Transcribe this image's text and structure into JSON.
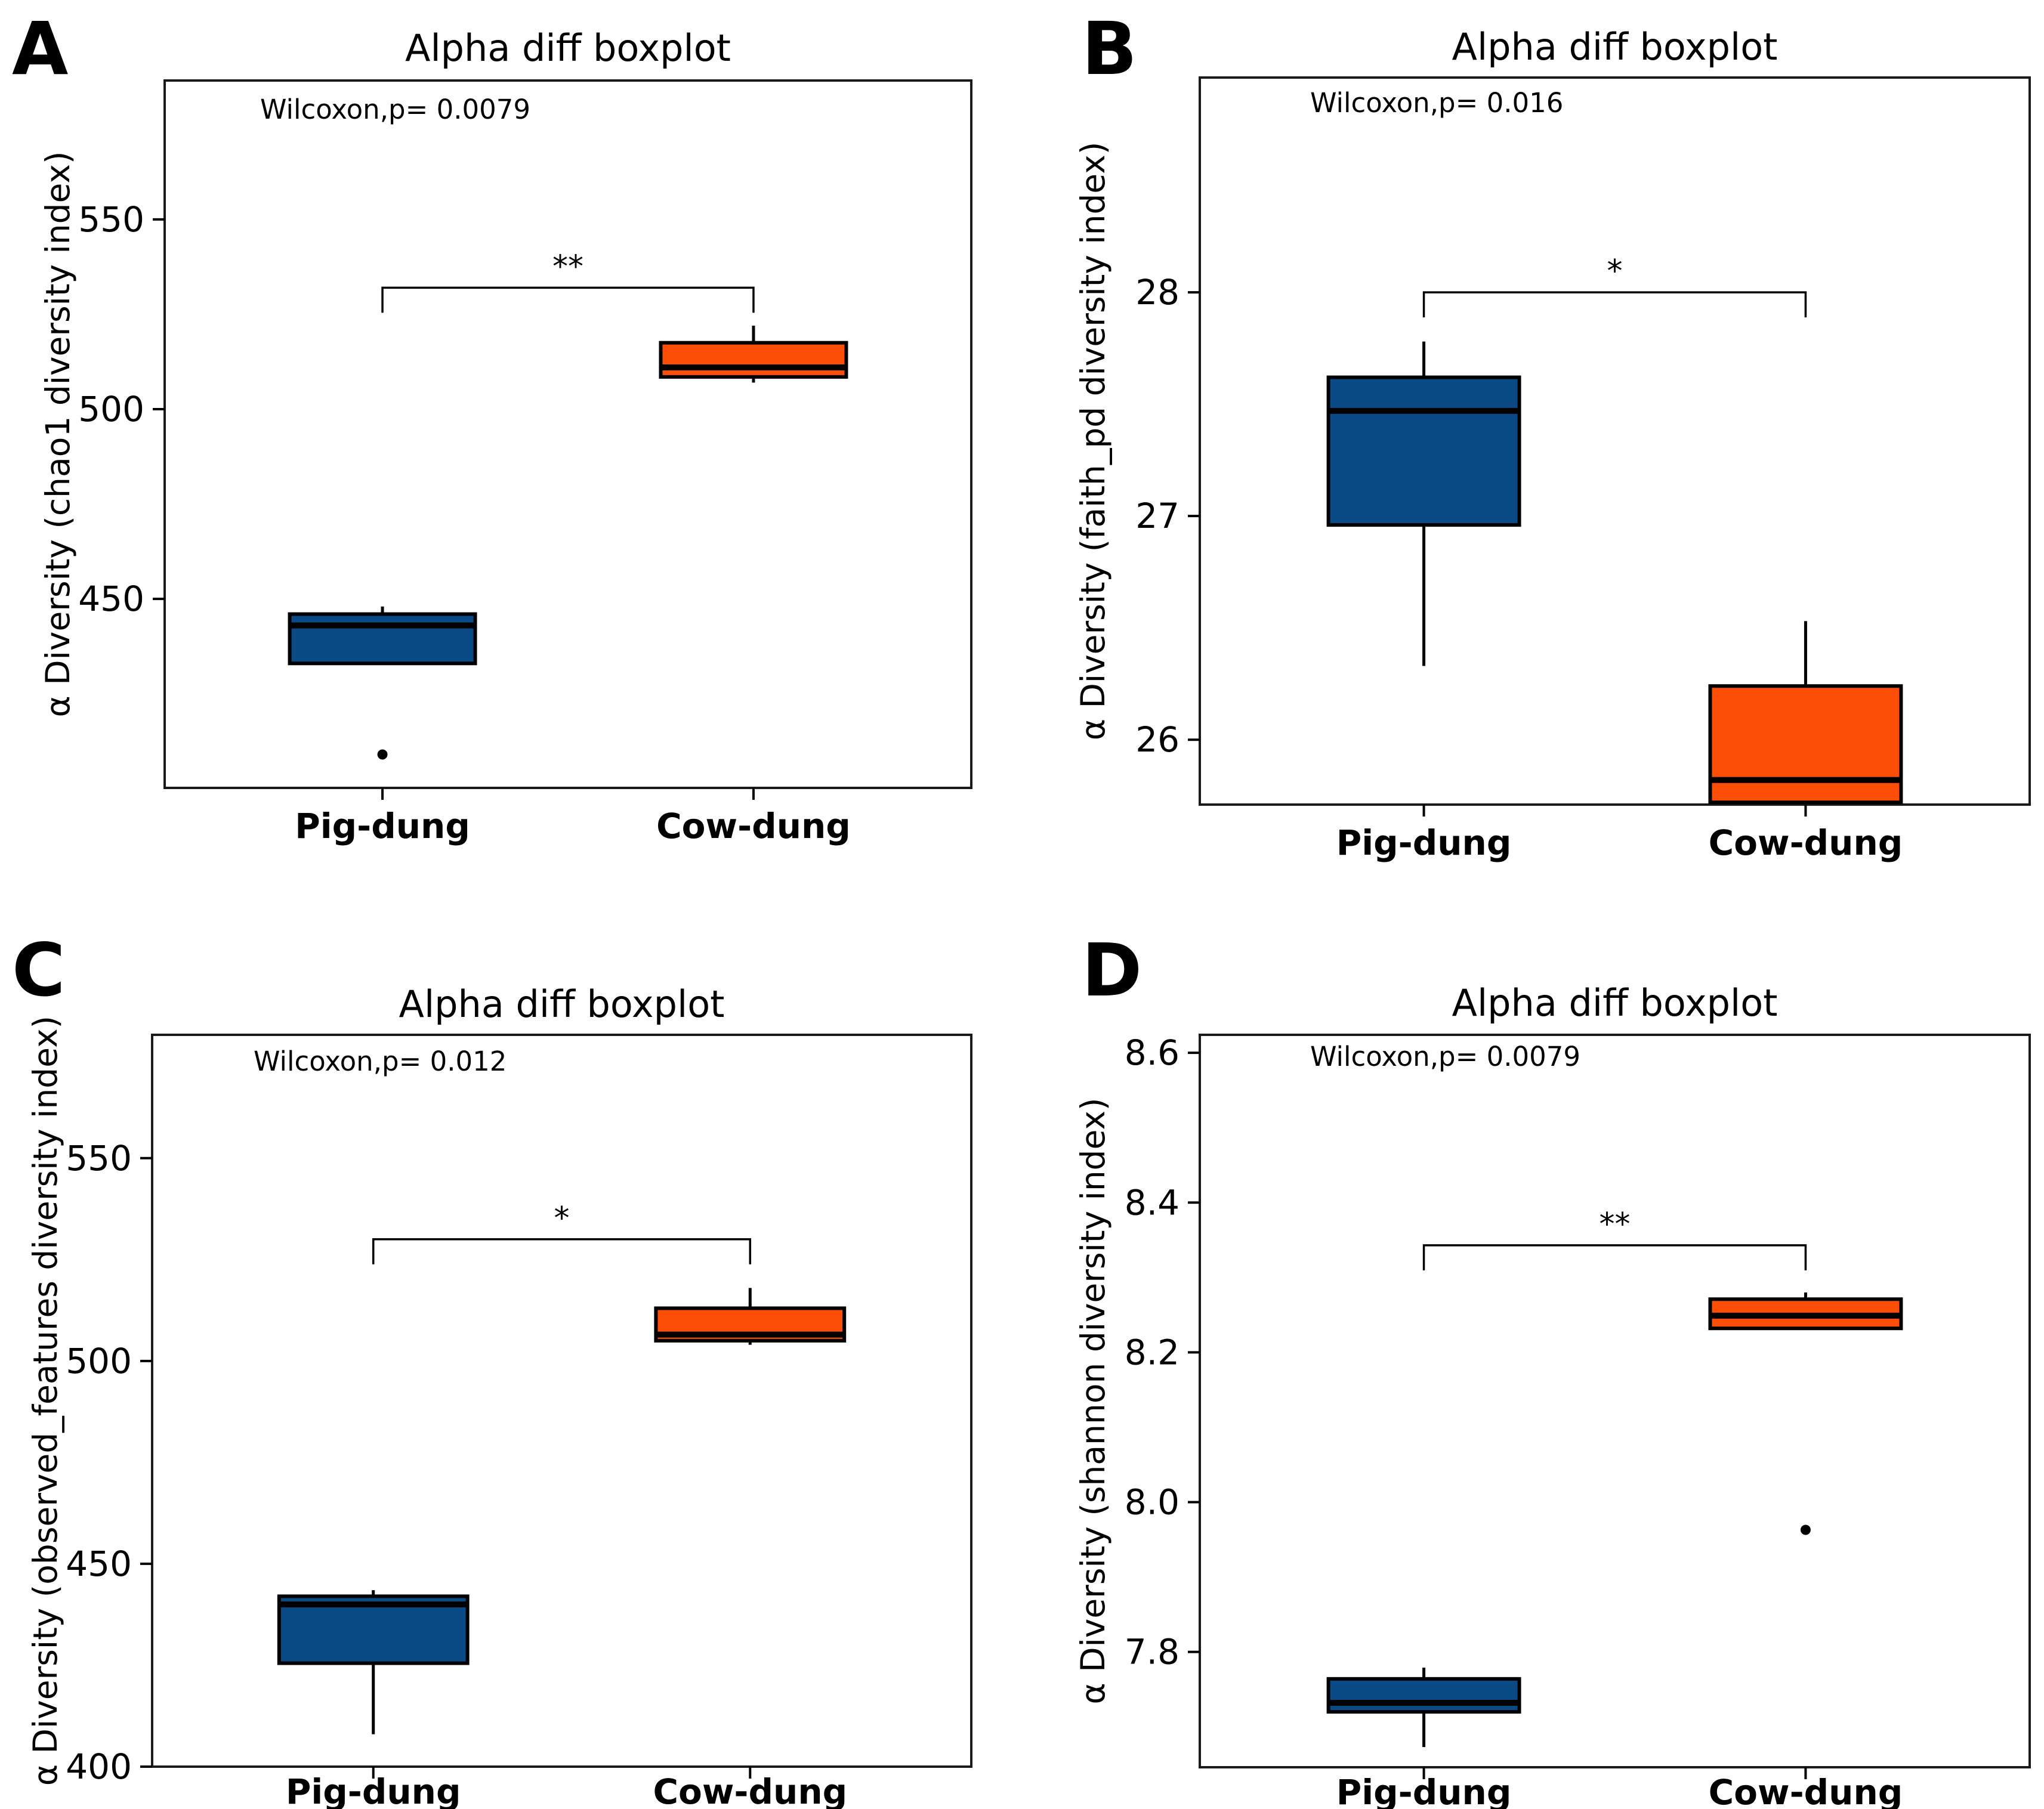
{
  "figure": {
    "background": "#ffffff",
    "accent_blue": "#0A4B87",
    "accent_orange": "#FC4E07"
  },
  "chart_data": [
    {
      "type": "boxplot",
      "panel_label": "A",
      "title": "Alpha diff boxplot",
      "annotation": "Wilcoxon,p= 0.0079",
      "ylabel": "α Diversity (chao1 diversity index)",
      "xlabel": "",
      "ylim": [
        400.2,
        586.6
      ],
      "ytick_values": [
        450,
        500,
        550
      ],
      "ytick_labels": [
        "450",
        "500",
        "550"
      ],
      "grid": false,
      "legend": "none",
      "categories": [
        "Pig-dung",
        "Cow-dung"
      ],
      "series": [
        {
          "name": "Pig-dung",
          "color": "#0A4B87",
          "whisker_low": 433,
          "q1": 433,
          "median": 443,
          "q3": 446,
          "whisker_high": 448,
          "outliers": [
            409
          ]
        },
        {
          "name": "Cow-dung",
          "color": "#FC4E07",
          "whisker_low": 507,
          "q1": 508.5,
          "median": 511,
          "q3": 517.5,
          "whisker_high": 522,
          "outliers": []
        }
      ],
      "significance": {
        "label": "**",
        "bracket_y": 532
      }
    },
    {
      "type": "boxplot",
      "panel_label": "B",
      "title": "Alpha diff boxplot",
      "annotation": "Wilcoxon,p= 0.016",
      "ylabel": "α Diversity (faith_pd diversity index)",
      "xlabel": "",
      "ylim": [
        25.71,
        28.96
      ],
      "ytick_values": [
        26,
        27,
        28
      ],
      "ytick_labels": [
        "26",
        "27",
        "28"
      ],
      "grid": false,
      "legend": "none",
      "categories": [
        "Pig-dung",
        "Cow-dung"
      ],
      "series": [
        {
          "name": "Pig-dung",
          "color": "#0A4B87",
          "whisker_low": 26.33,
          "q1": 26.96,
          "median": 27.47,
          "q3": 27.62,
          "whisker_high": 27.78,
          "outliers": []
        },
        {
          "name": "Cow-dung",
          "color": "#FC4E07",
          "whisker_low": 25.72,
          "q1": 25.72,
          "median": 25.82,
          "q3": 26.24,
          "whisker_high": 26.53,
          "outliers": []
        }
      ],
      "significance": {
        "label": "*",
        "bracket_y": 28.0
      }
    },
    {
      "type": "boxplot",
      "panel_label": "C",
      "title": "Alpha diff boxplot",
      "annotation": "Wilcoxon,p= 0.012",
      "ylabel": "α Diversity (observed_features diversity index)",
      "xlabel": "",
      "ylim": [
        400,
        580.4
      ],
      "ytick_values": [
        400,
        450,
        500,
        550
      ],
      "ytick_labels": [
        "400",
        "450",
        "500",
        "550"
      ],
      "grid": false,
      "legend": "none",
      "categories": [
        "Pig-dung",
        "Cow-dung"
      ],
      "series": [
        {
          "name": "Pig-dung",
          "color": "#0A4B87",
          "whisker_low": 408,
          "q1": 425.5,
          "median": 440,
          "q3": 442,
          "whisker_high": 443.5,
          "outliers": []
        },
        {
          "name": "Cow-dung",
          "color": "#FC4E07",
          "whisker_low": 504,
          "q1": 505,
          "median": 506.5,
          "q3": 513,
          "whisker_high": 518,
          "outliers": []
        }
      ],
      "significance": {
        "label": "*",
        "bracket_y": 530
      }
    },
    {
      "type": "boxplot",
      "panel_label": "D",
      "title": "Alpha diff boxplot",
      "annotation": "Wilcoxon,p= 0.0079",
      "ylabel": "α Diversity (shannon diversity index)",
      "xlabel": "",
      "ylim": [
        7.646,
        8.624
      ],
      "ytick_values": [
        7.8,
        8.0,
        8.2,
        8.4,
        8.6
      ],
      "ytick_labels": [
        "7.8",
        "8.0",
        "8.2",
        "8.4",
        "8.6"
      ],
      "grid": false,
      "legend": "none",
      "categories": [
        "Pig-dung",
        "Cow-dung"
      ],
      "series": [
        {
          "name": "Pig-dung",
          "color": "#0A4B87",
          "whisker_low": 7.673,
          "q1": 7.72,
          "median": 7.732,
          "q3": 7.764,
          "whisker_high": 7.779,
          "outliers": []
        },
        {
          "name": "Cow-dung",
          "color": "#FC4E07",
          "whisker_low": 8.232,
          "q1": 8.232,
          "median": 8.249,
          "q3": 8.271,
          "whisker_high": 8.28,
          "outliers": [
            7.963
          ]
        }
      ],
      "significance": {
        "label": "**",
        "bracket_y": 8.343
      }
    }
  ]
}
